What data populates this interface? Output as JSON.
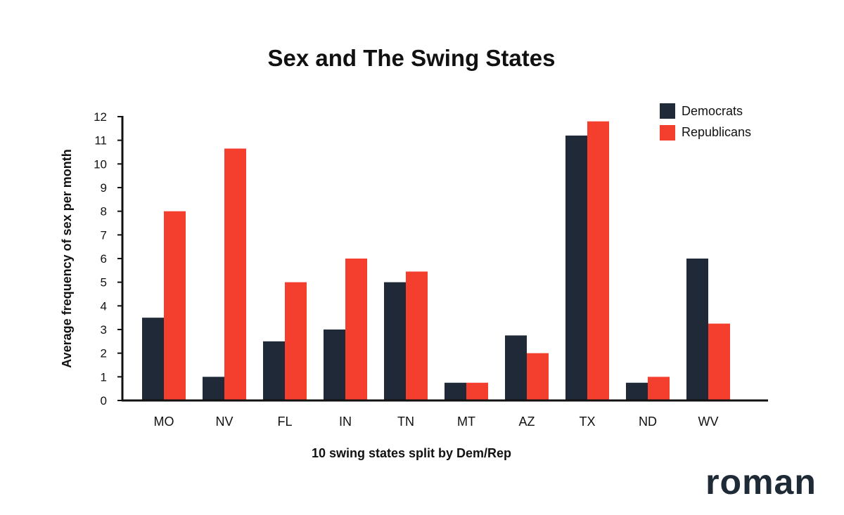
{
  "brand": {
    "logo_text": "roman"
  },
  "chart_data": {
    "type": "bar",
    "title": "Sex and The Swing States",
    "xlabel": "10 swing states split by Dem/Rep",
    "ylabel": "Average frequency of sex per month",
    "ylim": [
      0,
      12
    ],
    "yticks": [
      0,
      1,
      2,
      3,
      4,
      5,
      6,
      7,
      8,
      9,
      10,
      11,
      12
    ],
    "grid": false,
    "legend_position": "top-right",
    "categories": [
      "MO",
      "NV",
      "FL",
      "IN",
      "TN",
      "MT",
      "AZ",
      "TX",
      "ND",
      "WV"
    ],
    "series": [
      {
        "name": "Democrats",
        "color": "#1f2937",
        "values": [
          3.5,
          1.0,
          2.5,
          3.0,
          5.0,
          0.75,
          2.75,
          11.2,
          0.75,
          6.0
        ]
      },
      {
        "name": "Republicans",
        "color": "#f43f2e",
        "values": [
          8.0,
          10.65,
          5.0,
          6.0,
          5.45,
          0.75,
          2.0,
          11.8,
          1.0,
          3.25
        ]
      }
    ]
  }
}
